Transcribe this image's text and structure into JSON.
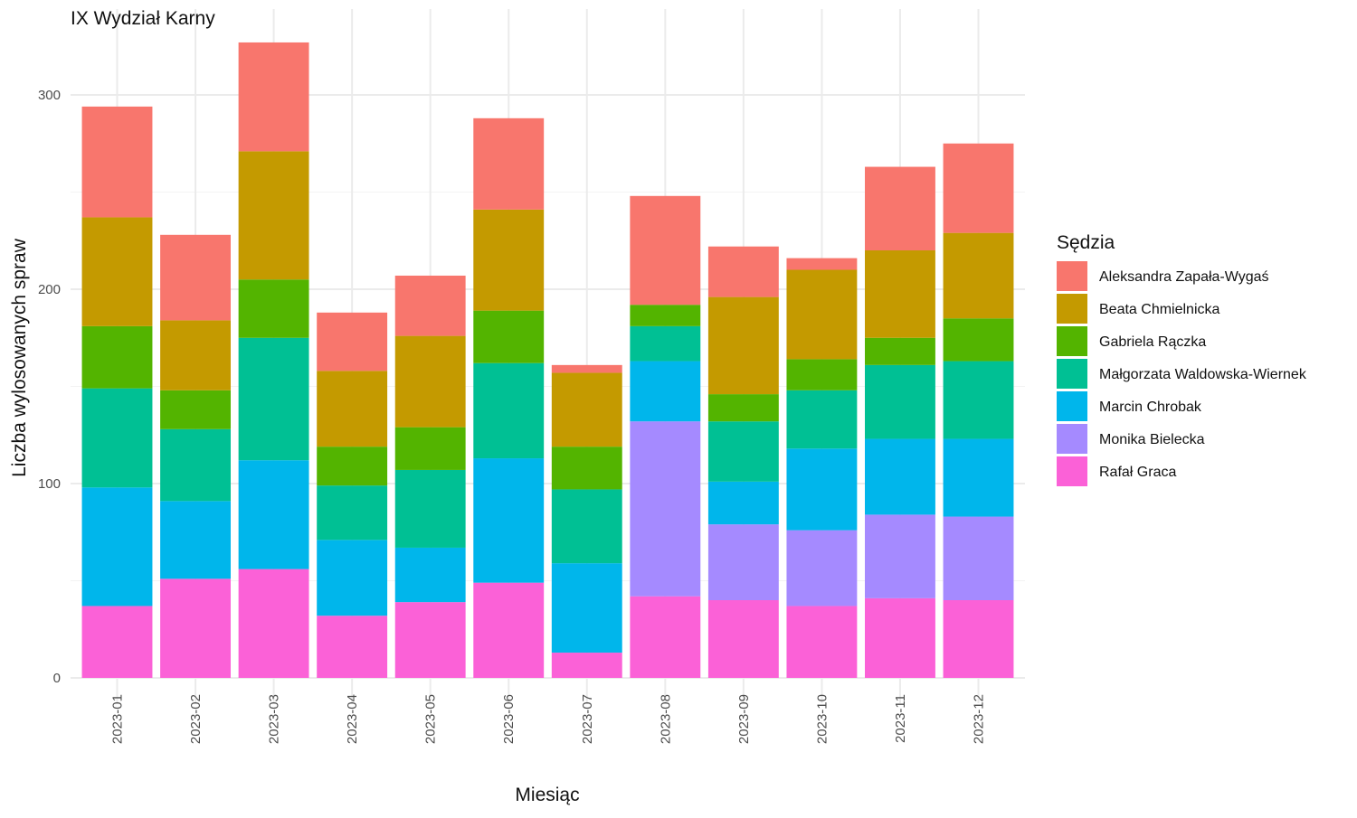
{
  "chart_data": {
    "type": "bar",
    "stacked": true,
    "title": "IX Wydział Karny",
    "xlabel": "Miesiąc",
    "ylabel": "Liczba wylosowanych spraw",
    "ylim": [
      0,
      340
    ],
    "yticks": [
      0,
      100,
      200,
      300
    ],
    "grid": true,
    "legend_title": "Sędzia",
    "legend_position": "right",
    "categories": [
      "2023-01",
      "2023-02",
      "2023-03",
      "2023-04",
      "2023-05",
      "2023-06",
      "2023-07",
      "2023-08",
      "2023-09",
      "2023-10",
      "2023-11",
      "2023-12"
    ],
    "series": [
      {
        "name": "Aleksandra Zapała-Wygaś",
        "color": "#F8766D",
        "values": [
          57,
          44,
          56,
          30,
          31,
          47,
          4,
          56,
          26,
          6,
          43,
          46
        ]
      },
      {
        "name": "Beata Chmielnicka",
        "color": "#C49A00",
        "values": [
          56,
          36,
          66,
          39,
          47,
          52,
          38,
          0,
          50,
          46,
          45,
          44
        ]
      },
      {
        "name": "Gabriela Rączka",
        "color": "#53B400",
        "values": [
          32,
          20,
          30,
          20,
          22,
          27,
          22,
          11,
          14,
          16,
          14,
          22
        ]
      },
      {
        "name": "Małgorzata Waldowska-Wiernek",
        "color": "#00C094",
        "values": [
          51,
          37,
          63,
          28,
          40,
          49,
          38,
          18,
          31,
          30,
          38,
          40
        ]
      },
      {
        "name": "Marcin Chrobak",
        "color": "#00B6EB",
        "values": [
          61,
          40,
          56,
          39,
          28,
          64,
          46,
          31,
          22,
          42,
          39,
          40
        ]
      },
      {
        "name": "Monika Bielecka",
        "color": "#A58AFF",
        "values": [
          0,
          0,
          0,
          0,
          0,
          0,
          0,
          90,
          39,
          39,
          43,
          43
        ]
      },
      {
        "name": "Rafał Graca",
        "color": "#FB61D7",
        "values": [
          37,
          51,
          56,
          32,
          39,
          49,
          13,
          42,
          40,
          37,
          41,
          40
        ]
      }
    ]
  }
}
